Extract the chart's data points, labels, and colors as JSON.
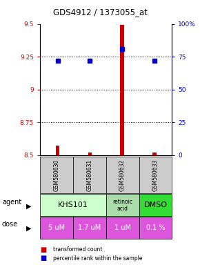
{
  "title": "GDS4912 / 1373055_at",
  "samples": [
    "GSM580630",
    "GSM580631",
    "GSM580632",
    "GSM580633"
  ],
  "transformed_counts": [
    8.57,
    8.52,
    9.49,
    8.52
  ],
  "percentile_ranks": [
    72,
    72,
    81,
    72
  ],
  "ylim_left": [
    8.5,
    9.5
  ],
  "ylim_right": [
    0,
    100
  ],
  "yticks_left": [
    8.5,
    8.75,
    9.0,
    9.25,
    9.5
  ],
  "ytick_labels_left": [
    "8.5",
    "8.75",
    "9",
    "9.25",
    "9.5"
  ],
  "yticks_right": [
    0,
    25,
    50,
    75,
    100
  ],
  "ytick_labels_right": [
    "0",
    "25",
    "50",
    "75",
    "100%"
  ],
  "doses": [
    "5 uM",
    "1.7 uM",
    "1 uM",
    "0.1 %"
  ],
  "bar_color": "#cc0000",
  "dot_color": "#0000cc",
  "left_axis_color": "#cc0000",
  "right_axis_color": "#0000cc",
  "background_color": "#ffffff",
  "agent_khs_color": "#ccffcc",
  "agent_retinoic_color": "#aaddaa",
  "agent_dmso_color": "#33dd33",
  "dose_color": "#dd55dd",
  "sample_box_color": "#cccccc",
  "legend_square_red": "#cc0000",
  "legend_square_blue": "#0000cc"
}
